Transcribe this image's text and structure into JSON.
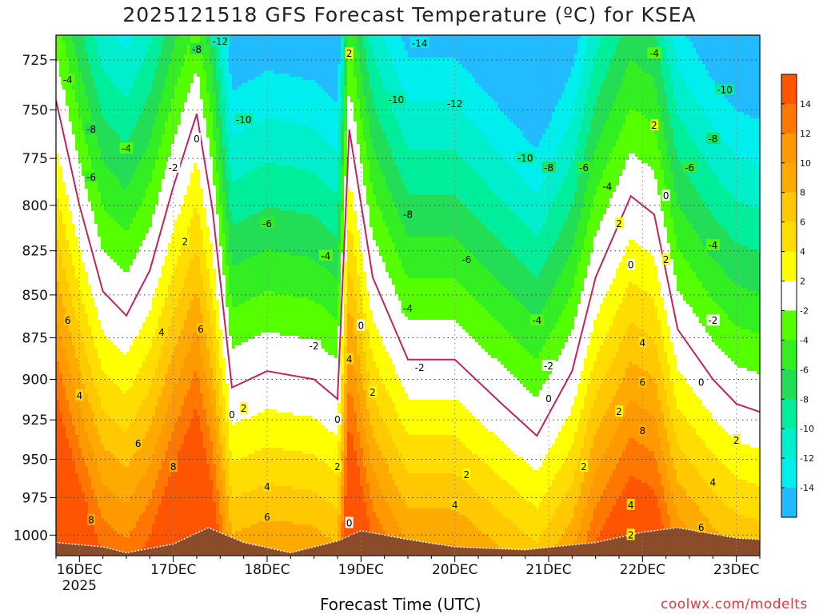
{
  "title": "2025121518 GFS Forecast Temperature (ºC) for KSEA",
  "xlabel": "Forecast Time (UTC)",
  "credit": "coolwx.com/modelts",
  "chart_data": {
    "type": "heatmap",
    "title": "2025121518 GFS Forecast Temperature (ºC) for KSEA",
    "xlabel": "Forecast Time (UTC)",
    "ylabel": "",
    "x_ticks": [
      {
        "label": "16DEC",
        "sub": "2025",
        "value": "2025-12-16 00Z"
      },
      {
        "label": "17DEC",
        "value": "2025-12-17 00Z"
      },
      {
        "label": "18DEC",
        "value": "2025-12-18 00Z"
      },
      {
        "label": "19DEC",
        "value": "2025-12-19 00Z"
      },
      {
        "label": "20DEC",
        "value": "2025-12-20 00Z"
      },
      {
        "label": "21DEC",
        "value": "2025-12-21 00Z"
      },
      {
        "label": "22DEC",
        "value": "2025-12-22 00Z"
      },
      {
        "label": "23DEC",
        "value": "2025-12-23 00Z"
      }
    ],
    "xlim": [
      "2025-12-15 18Z",
      "2025-12-23 06Z"
    ],
    "y_ticks": [
      725,
      750,
      775,
      800,
      825,
      850,
      875,
      900,
      925,
      950,
      975,
      1000
    ],
    "ylim": [
      1014,
      713
    ],
    "y_scale": "log-pressure",
    "grid": true,
    "colorbar": {
      "position": "right",
      "levels": [
        {
          "from": 14,
          "to": 16,
          "color": "#ff5500"
        },
        {
          "from": 12,
          "to": 14,
          "color": "#ff7700"
        },
        {
          "from": 10,
          "to": 12,
          "color": "#ff9900"
        },
        {
          "from": 8,
          "to": 10,
          "color": "#ffaa00"
        },
        {
          "from": 6,
          "to": 8,
          "color": "#ffc800"
        },
        {
          "from": 4,
          "to": 6,
          "color": "#ffdd00"
        },
        {
          "from": 2,
          "to": 4,
          "color": "#ffff00"
        },
        {
          "from": -2,
          "to": 2,
          "color": "#ffffff"
        },
        {
          "from": -4,
          "to": -2,
          "color": "#55ff00"
        },
        {
          "from": -6,
          "to": -4,
          "color": "#33ee22"
        },
        {
          "from": -8,
          "to": -6,
          "color": "#22dd55"
        },
        {
          "from": -10,
          "to": -8,
          "color": "#00ee99"
        },
        {
          "from": -12,
          "to": -10,
          "color": "#00eecc"
        },
        {
          "from": -14,
          "to": -12,
          "color": "#00eeee"
        },
        {
          "from": -16,
          "to": -14,
          "color": "#22bbff"
        }
      ],
      "tick_labels": [
        "14",
        "12",
        "10",
        "8",
        "6",
        "4",
        "2",
        "-2",
        "-4",
        "-6",
        "-8",
        "-10",
        "-12",
        "-14"
      ]
    },
    "terrain_color": "#8b4c2b",
    "surface_pressure": [
      {
        "t": "2025-12-15 18Z",
        "p": 1005
      },
      {
        "t": "2025-12-16 06Z",
        "p": 1008
      },
      {
        "t": "2025-12-16 12Z",
        "p": 1012
      },
      {
        "t": "2025-12-17 00Z",
        "p": 1006
      },
      {
        "t": "2025-12-17 09Z",
        "p": 995
      },
      {
        "t": "2025-12-17 18Z",
        "p": 1005
      },
      {
        "t": "2025-12-18 06Z",
        "p": 1012
      },
      {
        "t": "2025-12-18 18Z",
        "p": 1004
      },
      {
        "t": "2025-12-19 00Z",
        "p": 997
      },
      {
        "t": "2025-12-19 12Z",
        "p": 1003
      },
      {
        "t": "2025-12-20 00Z",
        "p": 1008
      },
      {
        "t": "2025-12-20 18Z",
        "p": 1010
      },
      {
        "t": "2025-12-21 12Z",
        "p": 1005
      },
      {
        "t": "2025-12-22 00Z",
        "p": 998
      },
      {
        "t": "2025-12-22 09Z",
        "p": 995
      },
      {
        "t": "2025-12-23 00Z",
        "p": 1002
      },
      {
        "t": "2025-12-23 06Z",
        "p": 1003
      }
    ],
    "isotherms": [
      {
        "temp": 0,
        "color": "#c0245e",
        "points": [
          {
            "t": "2025-12-15 18Z",
            "p": 745
          },
          {
            "t": "2025-12-16 00Z",
            "p": 800
          },
          {
            "t": "2025-12-16 06Z",
            "p": 848
          },
          {
            "t": "2025-12-16 12Z",
            "p": 862
          },
          {
            "t": "2025-12-16 18Z",
            "p": 836
          },
          {
            "t": "2025-12-17 00Z",
            "p": 790
          },
          {
            "t": "2025-12-17 06Z",
            "p": 752
          },
          {
            "t": "2025-12-17 10Z",
            "p": 802
          },
          {
            "t": "2025-12-17 15Z",
            "p": 905
          },
          {
            "t": "2025-12-18 00Z",
            "p": 895
          },
          {
            "t": "2025-12-18 12Z",
            "p": 900
          },
          {
            "t": "2025-12-18 18Z",
            "p": 912
          },
          {
            "t": "2025-12-18 21Z",
            "p": 760
          },
          {
            "t": "2025-12-19 03Z",
            "p": 840
          },
          {
            "t": "2025-12-19 12Z",
            "p": 888
          },
          {
            "t": "2025-12-20 00Z",
            "p": 888
          },
          {
            "t": "2025-12-20 12Z",
            "p": 915
          },
          {
            "t": "2025-12-20 21Z",
            "p": 935
          },
          {
            "t": "2025-12-21 06Z",
            "p": 895
          },
          {
            "t": "2025-12-21 12Z",
            "p": 840
          },
          {
            "t": "2025-12-21 21Z",
            "p": 795
          },
          {
            "t": "2025-12-22 03Z",
            "p": 805
          },
          {
            "t": "2025-12-22 09Z",
            "p": 870
          },
          {
            "t": "2025-12-22 18Z",
            "p": 900
          },
          {
            "t": "2025-12-23 00Z",
            "p": 915
          },
          {
            "t": "2025-12-23 06Z",
            "p": 920
          }
        ]
      }
    ],
    "contour_labels": [
      {
        "text": "-4",
        "t": "2025-12-15 21Z",
        "p": 735
      },
      {
        "text": "-8",
        "t": "2025-12-16 03Z",
        "p": 760
      },
      {
        "text": "-6",
        "t": "2025-12-16 03Z",
        "p": 785
      },
      {
        "text": "-4",
        "t": "2025-12-16 12Z",
        "p": 770
      },
      {
        "text": "-2",
        "t": "2025-12-17 00Z",
        "p": 780
      },
      {
        "text": "0",
        "t": "2025-12-17 06Z",
        "p": 765
      },
      {
        "text": "2",
        "t": "2025-12-17 03Z",
        "p": 820
      },
      {
        "text": "4",
        "t": "2025-12-16 21Z",
        "p": 872
      },
      {
        "text": "6",
        "t": "2025-12-17 07Z",
        "p": 870
      },
      {
        "text": "6",
        "t": "2025-12-15 21Z",
        "p": 865
      },
      {
        "text": "4",
        "t": "2025-12-16 00Z",
        "p": 910
      },
      {
        "text": "6",
        "t": "2025-12-16 15Z",
        "p": 940
      },
      {
        "text": "8",
        "t": "2025-12-17 00Z",
        "p": 955
      },
      {
        "text": "8",
        "t": "2025-12-16 03Z",
        "p": 990
      },
      {
        "text": "-12",
        "t": "2025-12-17 12Z",
        "p": 716
      },
      {
        "text": "-10",
        "t": "2025-12-17 18Z",
        "p": 755
      },
      {
        "text": "-8",
        "t": "2025-12-17 06Z",
        "p": 720
      },
      {
        "text": "-6",
        "t": "2025-12-18 00Z",
        "p": 810
      },
      {
        "text": "-4",
        "t": "2025-12-18 15Z",
        "p": 828
      },
      {
        "text": "-2",
        "t": "2025-12-18 12Z",
        "p": 880
      },
      {
        "text": "0",
        "t": "2025-12-17 15Z",
        "p": 922
      },
      {
        "text": "2",
        "t": "2025-12-17 18Z",
        "p": 918
      },
      {
        "text": "4",
        "t": "2025-12-18 00Z",
        "p": 968
      },
      {
        "text": "6",
        "t": "2025-12-18 00Z",
        "p": 988
      },
      {
        "text": "0",
        "t": "2025-12-18 18Z",
        "p": 925
      },
      {
        "text": "2",
        "t": "2025-12-18 18Z",
        "p": 955
      },
      {
        "text": "2",
        "t": "2025-12-18 21Z",
        "p": 722
      },
      {
        "text": "0",
        "t": "2025-12-19 00Z",
        "p": 868
      },
      {
        "text": "4",
        "t": "2025-12-18 21Z",
        "p": 888
      },
      {
        "text": "2",
        "t": "2025-12-19 03Z",
        "p": 908
      },
      {
        "text": "0",
        "t": "2025-12-18 21Z",
        "p": 992
      },
      {
        "text": "-14",
        "t": "2025-12-19 15Z",
        "p": 717
      },
      {
        "text": "-10",
        "t": "2025-12-19 09Z",
        "p": 745
      },
      {
        "text": "-12",
        "t": "2025-12-20 00Z",
        "p": 747
      },
      {
        "text": "-8",
        "t": "2025-12-19 12Z",
        "p": 805
      },
      {
        "text": "-10",
        "t": "2025-12-20 18Z",
        "p": 775
      },
      {
        "text": "-6",
        "t": "2025-12-20 03Z",
        "p": 830
      },
      {
        "text": "-4",
        "t": "2025-12-19 12Z",
        "p": 858
      },
      {
        "text": "-2",
        "t": "2025-12-19 15Z",
        "p": 893
      },
      {
        "text": "2",
        "t": "2025-12-20 03Z",
        "p": 960
      },
      {
        "text": "4",
        "t": "2025-12-20 00Z",
        "p": 980
      },
      {
        "text": "-8",
        "t": "2025-12-21 00Z",
        "p": 780
      },
      {
        "text": "-6",
        "t": "2025-12-21 09Z",
        "p": 780
      },
      {
        "text": "-4",
        "t": "2025-12-20 21Z",
        "p": 865
      },
      {
        "text": "-2",
        "t": "2025-12-21 00Z",
        "p": 892
      },
      {
        "text": "-4",
        "t": "2025-12-21 15Z",
        "p": 790
      },
      {
        "text": "-4",
        "t": "2025-12-22 03Z",
        "p": 722
      },
      {
        "text": "2",
        "t": "2025-12-22 03Z",
        "p": 758
      },
      {
        "text": "-6",
        "t": "2025-12-22 12Z",
        "p": 780
      },
      {
        "text": "0",
        "t": "2025-12-22 06Z",
        "p": 795
      },
      {
        "text": "2",
        "t": "2025-12-21 18Z",
        "p": 810
      },
      {
        "text": "0",
        "t": "2025-12-21 21Z",
        "p": 833
      },
      {
        "text": "2",
        "t": "2025-12-22 06Z",
        "p": 830
      },
      {
        "text": "0",
        "t": "2025-12-21 00Z",
        "p": 912
      },
      {
        "text": "2",
        "t": "2025-12-21 09Z",
        "p": 955
      },
      {
        "text": "2",
        "t": "2025-12-21 18Z",
        "p": 920
      },
      {
        "text": "4",
        "t": "2025-12-21 24Z",
        "p": 878
      },
      {
        "text": "6",
        "t": "2025-12-21 24Z",
        "p": 902
      },
      {
        "text": "8",
        "t": "2025-12-22 00Z",
        "p": 932
      },
      {
        "text": "4",
        "t": "2025-12-21 21Z",
        "p": 980
      },
      {
        "text": "2",
        "t": "2025-12-21 21Z",
        "p": 1000
      },
      {
        "text": "-10",
        "t": "2025-12-22 21Z",
        "p": 740
      },
      {
        "text": "-8",
        "t": "2025-12-22 18Z",
        "p": 765
      },
      {
        "text": "-4",
        "t": "2025-12-22 18Z",
        "p": 822
      },
      {
        "text": "-2",
        "t": "2025-12-22 18Z",
        "p": 865
      },
      {
        "text": "0",
        "t": "2025-12-22 15Z",
        "p": 902
      },
      {
        "text": "2",
        "t": "2025-12-22 24Z",
        "p": 938
      },
      {
        "text": "4",
        "t": "2025-12-22 18Z",
        "p": 965
      },
      {
        "text": "6",
        "t": "2025-12-22 15Z",
        "p": 995
      }
    ]
  }
}
